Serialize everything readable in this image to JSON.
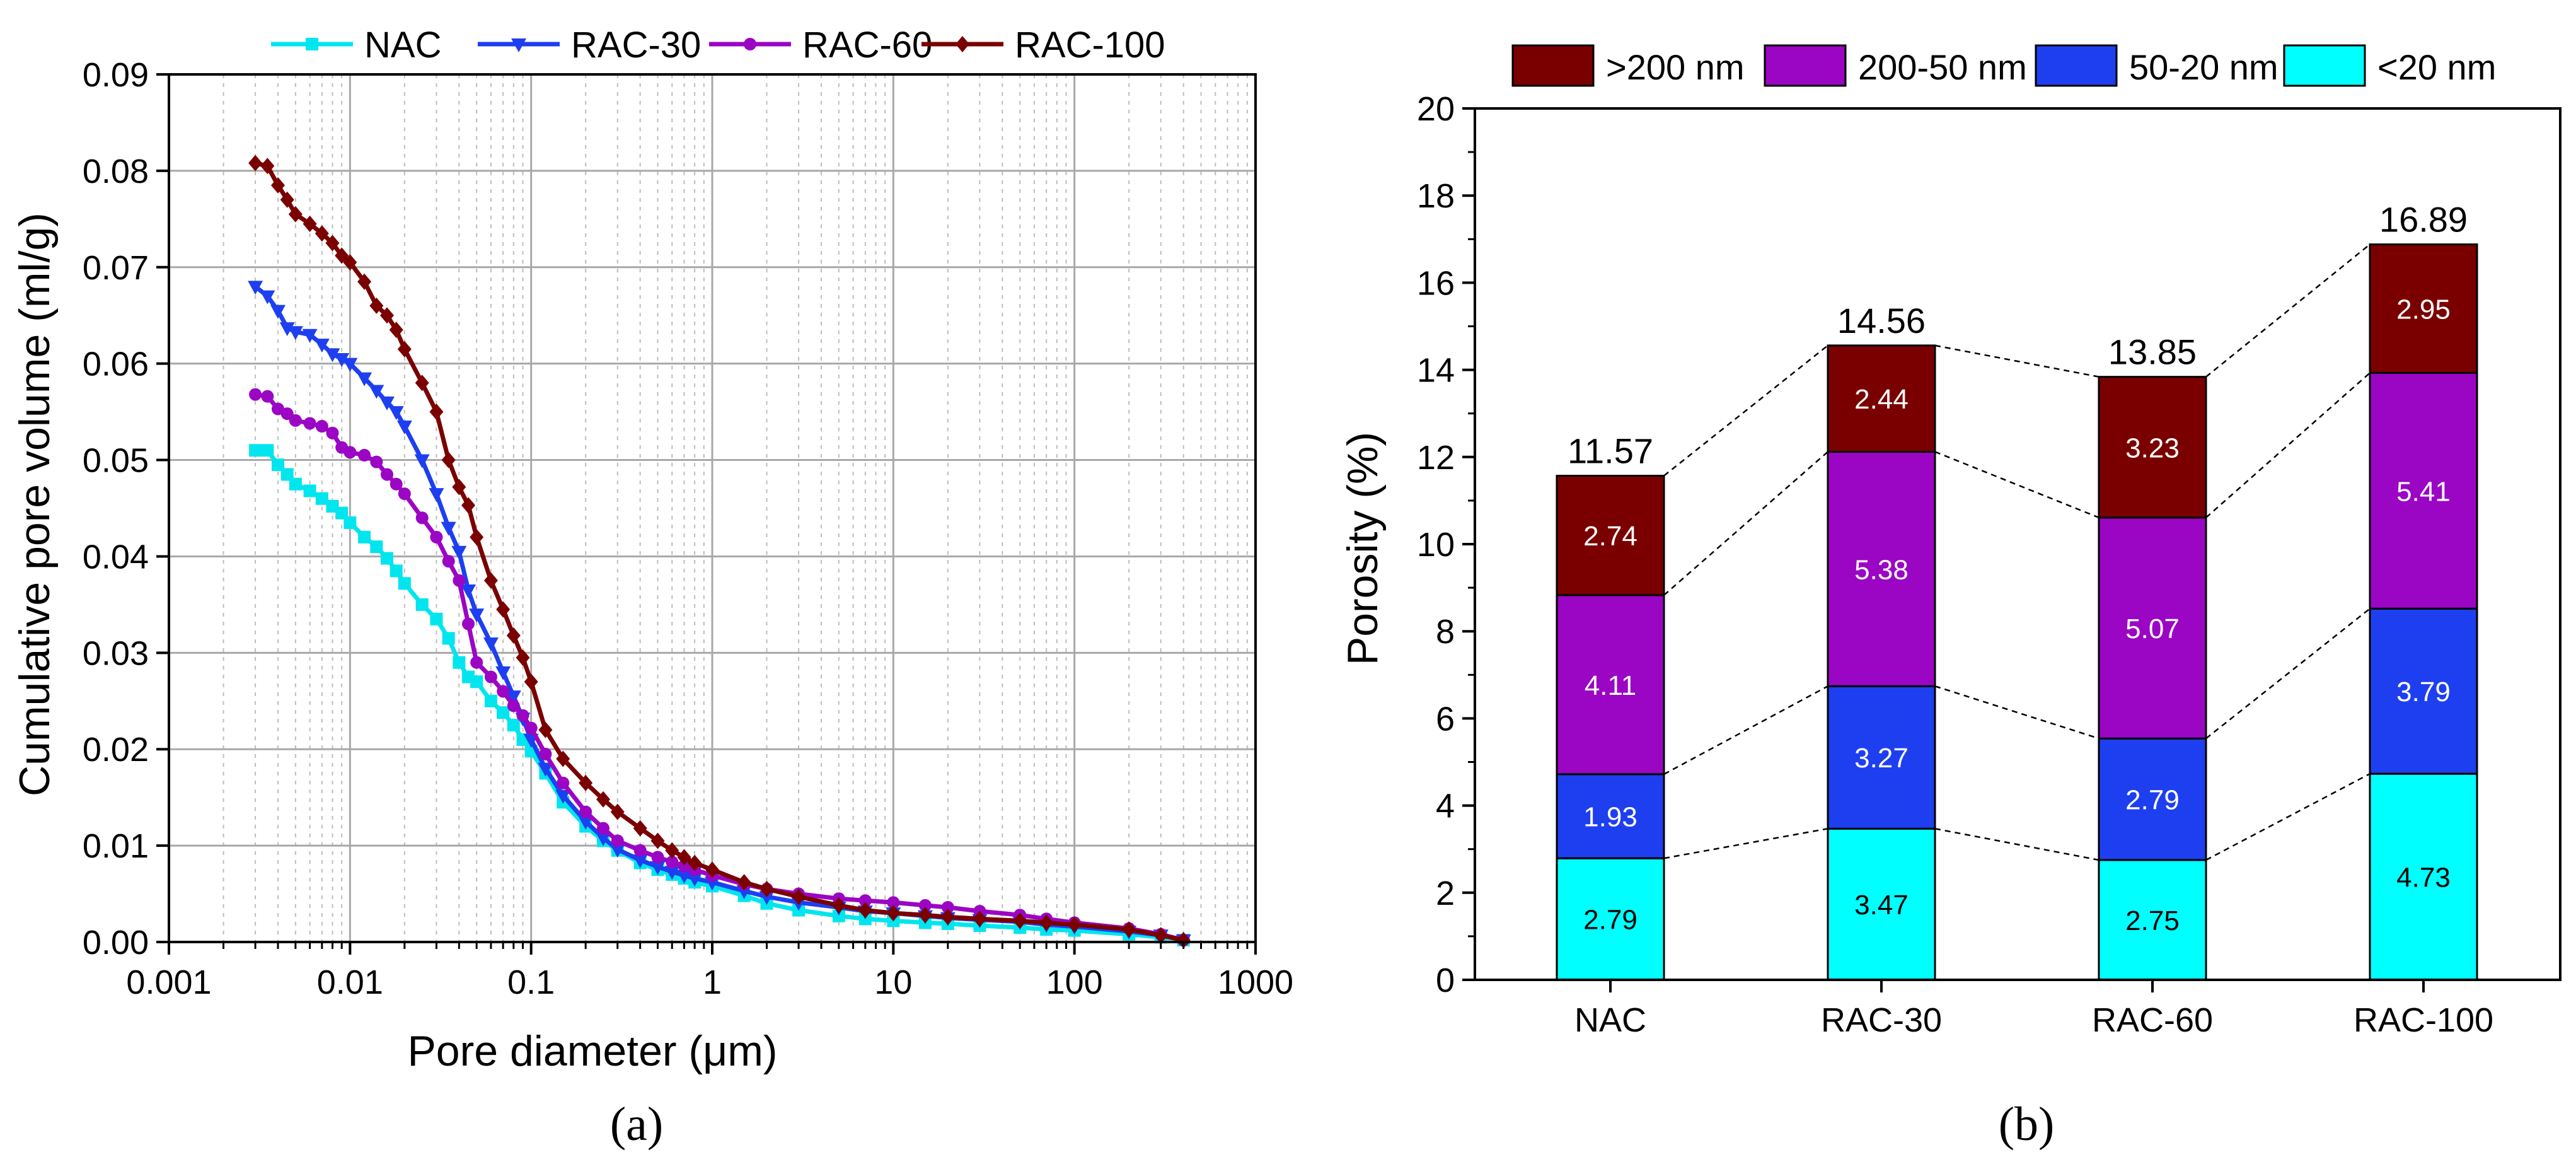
{
  "colors": {
    "NAC": "#00e5ee",
    "RAC-30": "#1e3ff0",
    "RAC-60": "#9b05c4",
    "RAC-100": "#7a0000",
    "gt200": "#7a0000",
    "p200_50": "#9b05c4",
    "p50_20": "#1e3ff0",
    "lt20": "#00ffff"
  },
  "chart_data": [
    {
      "type": "line",
      "sublabel": "(a)",
      "xlabel": "Pore diameter (μm)",
      "ylabel": "Cumulative pore volume (ml/g)",
      "xscale": "log",
      "xlim": [
        0.001,
        1000
      ],
      "ylim": [
        0,
        0.09
      ],
      "xticks": [
        0.001,
        0.01,
        0.1,
        1,
        10,
        100,
        1000
      ],
      "xtick_labels": [
        "0.001",
        "0.01",
        "0.1",
        "1",
        "10",
        "100",
        "1000"
      ],
      "yticks": [
        0,
        0.01,
        0.02,
        0.03,
        0.04,
        0.05,
        0.06,
        0.07,
        0.08,
        0.09
      ],
      "ytick_labels": [
        "0.00",
        "0.01",
        "0.02",
        "0.03",
        "0.04",
        "0.05",
        "0.06",
        "0.07",
        "0.08",
        "0.09"
      ],
      "grid": true,
      "legend_position": "top",
      "series": [
        {
          "name": "NAC",
          "marker": "square",
          "x": [
            0.003,
            0.0035,
            0.004,
            0.0045,
            0.005,
            0.006,
            0.007,
            0.008,
            0.009,
            0.01,
            0.012,
            0.014,
            0.016,
            0.018,
            0.02,
            0.025,
            0.03,
            0.035,
            0.04,
            0.045,
            0.05,
            0.06,
            0.07,
            0.08,
            0.09,
            0.1,
            0.12,
            0.15,
            0.2,
            0.25,
            0.3,
            0.4,
            0.5,
            0.6,
            0.7,
            0.8,
            1,
            1.5,
            2,
            3,
            5,
            7,
            10,
            15,
            20,
            30,
            50,
            70,
            100,
            200,
            300,
            400
          ],
          "y": [
            0.051,
            0.051,
            0.0495,
            0.0485,
            0.0475,
            0.0468,
            0.046,
            0.0452,
            0.0445,
            0.0435,
            0.042,
            0.041,
            0.0398,
            0.0385,
            0.0372,
            0.035,
            0.0335,
            0.0315,
            0.029,
            0.0275,
            0.027,
            0.025,
            0.0238,
            0.0225,
            0.021,
            0.0198,
            0.0175,
            0.0145,
            0.012,
            0.0105,
            0.0095,
            0.0082,
            0.0075,
            0.007,
            0.0066,
            0.0062,
            0.0058,
            0.0048,
            0.004,
            0.0033,
            0.0027,
            0.0024,
            0.0022,
            0.002,
            0.0019,
            0.0017,
            0.0015,
            0.0013,
            0.0012,
            0.0008,
            0.0005,
            0.0002
          ]
        },
        {
          "name": "RAC-30",
          "marker": "triangle-down",
          "x": [
            0.003,
            0.0035,
            0.004,
            0.0045,
            0.005,
            0.006,
            0.007,
            0.008,
            0.009,
            0.01,
            0.012,
            0.014,
            0.016,
            0.018,
            0.02,
            0.025,
            0.03,
            0.035,
            0.04,
            0.045,
            0.05,
            0.06,
            0.07,
            0.08,
            0.09,
            0.1,
            0.12,
            0.15,
            0.2,
            0.25,
            0.3,
            0.4,
            0.5,
            0.6,
            0.7,
            0.8,
            1,
            1.5,
            2,
            3,
            5,
            7,
            10,
            15,
            20,
            30,
            50,
            70,
            100,
            200,
            300,
            400
          ],
          "y": [
            0.068,
            0.067,
            0.0655,
            0.0637,
            0.0633,
            0.063,
            0.062,
            0.061,
            0.0605,
            0.06,
            0.0585,
            0.0572,
            0.056,
            0.055,
            0.0535,
            0.05,
            0.0465,
            0.043,
            0.0405,
            0.0365,
            0.034,
            0.031,
            0.028,
            0.0255,
            0.0232,
            0.021,
            0.018,
            0.0152,
            0.0125,
            0.0108,
            0.0096,
            0.0085,
            0.0078,
            0.0073,
            0.0069,
            0.0066,
            0.0062,
            0.0053,
            0.0047,
            0.0041,
            0.0036,
            0.0032,
            0.003,
            0.0027,
            0.0025,
            0.0023,
            0.0021,
            0.0018,
            0.0016,
            0.0011,
            0.0007,
            0.0002
          ]
        },
        {
          "name": "RAC-60",
          "marker": "circle",
          "x": [
            0.003,
            0.0035,
            0.004,
            0.0045,
            0.005,
            0.006,
            0.007,
            0.008,
            0.009,
            0.01,
            0.012,
            0.014,
            0.016,
            0.018,
            0.02,
            0.025,
            0.03,
            0.035,
            0.04,
            0.045,
            0.05,
            0.06,
            0.07,
            0.08,
            0.09,
            0.1,
            0.12,
            0.15,
            0.2,
            0.25,
            0.3,
            0.4,
            0.5,
            0.6,
            0.7,
            0.8,
            1,
            1.5,
            2,
            3,
            5,
            7,
            10,
            15,
            20,
            30,
            50,
            70,
            100,
            200,
            300,
            400
          ],
          "y": [
            0.0568,
            0.0566,
            0.0553,
            0.0548,
            0.0541,
            0.0538,
            0.0535,
            0.0528,
            0.0513,
            0.0508,
            0.0505,
            0.0498,
            0.0485,
            0.0475,
            0.0465,
            0.044,
            0.042,
            0.0395,
            0.0375,
            0.033,
            0.029,
            0.0275,
            0.026,
            0.0245,
            0.0235,
            0.0222,
            0.0195,
            0.0165,
            0.0135,
            0.0118,
            0.0105,
            0.0095,
            0.0088,
            0.0083,
            0.0079,
            0.0075,
            0.0069,
            0.006,
            0.0055,
            0.005,
            0.0045,
            0.0043,
            0.0041,
            0.0038,
            0.0036,
            0.0032,
            0.0028,
            0.0024,
            0.002,
            0.0014,
            0.0008,
            0.0002
          ]
        },
        {
          "name": "RAC-100",
          "marker": "diamond",
          "x": [
            0.003,
            0.0035,
            0.004,
            0.0045,
            0.005,
            0.006,
            0.007,
            0.008,
            0.009,
            0.01,
            0.012,
            0.014,
            0.016,
            0.018,
            0.02,
            0.025,
            0.03,
            0.035,
            0.04,
            0.045,
            0.05,
            0.06,
            0.07,
            0.08,
            0.09,
            0.1,
            0.12,
            0.15,
            0.2,
            0.25,
            0.3,
            0.4,
            0.5,
            0.6,
            0.7,
            0.8,
            1,
            1.5,
            2,
            3,
            5,
            7,
            10,
            15,
            20,
            30,
            50,
            70,
            100,
            200,
            300,
            400
          ],
          "y": [
            0.0808,
            0.0805,
            0.0785,
            0.077,
            0.0755,
            0.0745,
            0.0735,
            0.0725,
            0.0712,
            0.0705,
            0.0685,
            0.066,
            0.065,
            0.0635,
            0.0615,
            0.058,
            0.055,
            0.05,
            0.0472,
            0.0453,
            0.042,
            0.0375,
            0.0345,
            0.0318,
            0.0295,
            0.027,
            0.022,
            0.019,
            0.0165,
            0.0148,
            0.0135,
            0.0118,
            0.0105,
            0.0095,
            0.0088,
            0.0082,
            0.0075,
            0.0062,
            0.0055,
            0.0047,
            0.0038,
            0.0033,
            0.003,
            0.0028,
            0.0026,
            0.0024,
            0.0022,
            0.002,
            0.0018,
            0.0013,
            0.0007,
            0.0002
          ]
        }
      ]
    },
    {
      "type": "bar",
      "stacked": true,
      "sublabel": "(b)",
      "xlabel": "",
      "ylabel": "Porosity (%)",
      "ylim": [
        0,
        20
      ],
      "yticks": [
        0,
        2,
        4,
        6,
        8,
        10,
        12,
        14,
        16,
        18,
        20
      ],
      "categories": [
        "NAC",
        "RAC-30",
        "RAC-60",
        "RAC-100"
      ],
      "totals": [
        "11.57",
        "14.56",
        "13.85",
        "16.89"
      ],
      "legend_position": "top",
      "series": [
        {
          "name": "<20 nm",
          "key": "lt20",
          "values": [
            2.79,
            3.47,
            2.75,
            4.73
          ],
          "labels": [
            "2.79",
            "3.47",
            "2.75",
            "4.73"
          ],
          "label_color": "#000000"
        },
        {
          "name": "50-20 nm",
          "key": "p50_20",
          "values": [
            1.93,
            3.27,
            2.79,
            3.79
          ],
          "labels": [
            "1.93",
            "3.27",
            "2.79",
            "3.79"
          ],
          "label_color": "#ffffff"
        },
        {
          "name": "200-50 nm",
          "key": "p200_50",
          "values": [
            4.11,
            5.38,
            5.07,
            5.41
          ],
          "labels": [
            "4.11",
            "5.38",
            "5.07",
            "5.41"
          ],
          "label_color": "#ffffff"
        },
        {
          "name": ">200 nm",
          "key": "gt200",
          "values": [
            2.74,
            2.44,
            3.23,
            2.95
          ],
          "labels": [
            "2.74",
            "2.44",
            "3.23",
            "2.95"
          ],
          "label_color": "#ffffff"
        }
      ],
      "legend_order": [
        ">200 nm",
        "200-50 nm",
        "50-20 nm",
        "<20 nm"
      ]
    }
  ]
}
